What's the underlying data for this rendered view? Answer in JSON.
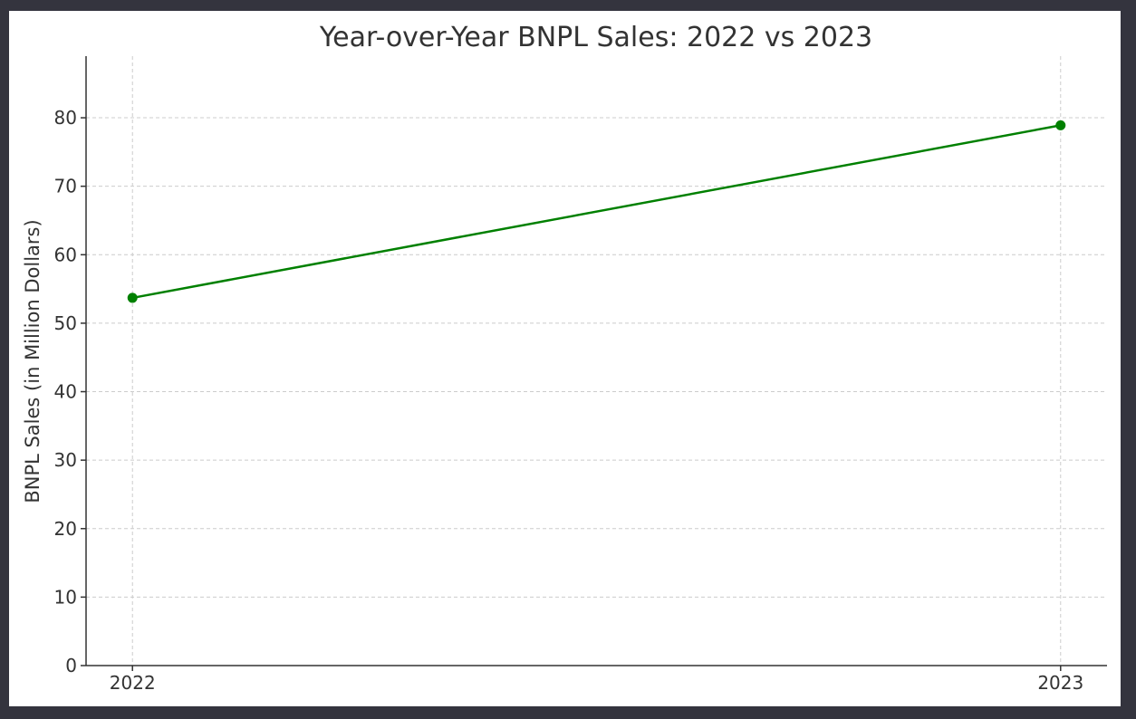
{
  "chart_data": {
    "type": "line",
    "title": "Year-over-Year BNPL Sales: 2022 vs 2023",
    "xlabel": "",
    "ylabel": "BNPL Sales (in Million Dollars)",
    "x": [
      "2022",
      "2023"
    ],
    "series": [
      {
        "values": [
          53.7,
          78.9
        ],
        "color": "#008000",
        "marker": "circle"
      }
    ],
    "xlim": [
      2021.95,
      2023.05
    ],
    "ylim": [
      0,
      89
    ],
    "yticks": [
      0,
      10,
      20,
      30,
      40,
      50,
      60,
      70,
      80
    ],
    "xticks": [
      "2022",
      "2023"
    ],
    "grid": true,
    "grid_style": "dashed"
  }
}
